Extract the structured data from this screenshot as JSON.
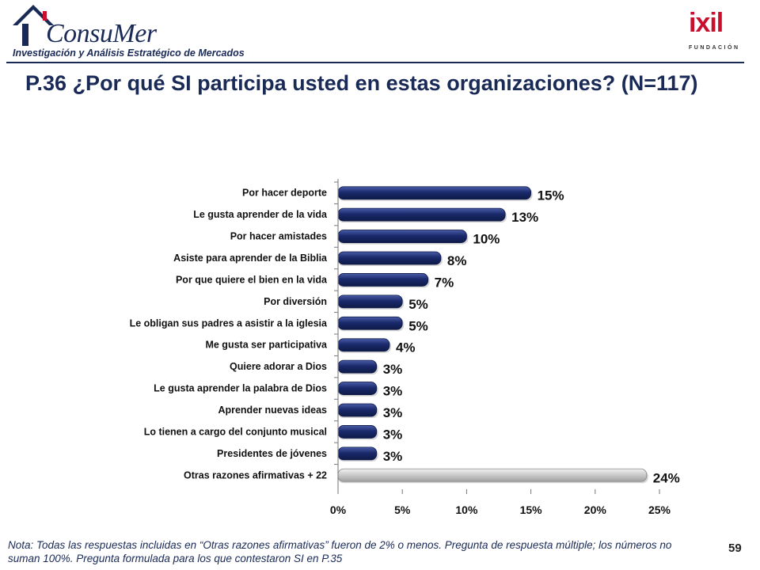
{
  "header": {
    "logo_left_text": "ConsuMer",
    "logo_left_tagline": "Investigación y Análisis Estratégico de Mercados",
    "logo_right_text": "ixil",
    "logo_right_sub": "FUNDACIÓN"
  },
  "title": "P.36 ¿Por qué SI participa usted en estas organizaciones? (N=117)",
  "footnote": "Nota: Todas las respuestas incluidas en “Otras razones afirmativas” fueron de 2% o menos. Pregunta de respuesta múltiple; los números no suman 100%. Pregunta formulada para los que contestaron SI en P.35",
  "page_number": "59",
  "colors": {
    "bar_primary": "#1a2a6c",
    "bar_highlight": "#4a5ca8",
    "bar_other": "#c0c0c0",
    "text_dark": "#1a2a57"
  },
  "chart_data": {
    "type": "bar",
    "orientation": "horizontal",
    "categories": [
      "Por hacer deporte",
      "Le gusta aprender de la vida",
      "Por  hacer amistades",
      "Asiste para aprender de la Biblia",
      "Por que quiere el bien en la vida",
      "Por diversión",
      "Le obligan sus padres a asistir a la iglesia",
      "Me gusta ser participativa",
      "Quiere adorar a Dios",
      "Le gusta aprender la palabra de Dios",
      "Aprender nuevas ideas",
      "Lo tienen a cargo del conjunto musical",
      "Presidentes de jóvenes",
      "Otras razones afirmativas + 22"
    ],
    "values": [
      15,
      13,
      10,
      8,
      7,
      5,
      5,
      4,
      3,
      3,
      3,
      3,
      3,
      24
    ],
    "value_labels": [
      "15%",
      "13%",
      "10%",
      "8%",
      "7%",
      "5%",
      "5%",
      "4%",
      "3%",
      "3%",
      "3%",
      "3%",
      "3%",
      "24%"
    ],
    "highlight": [
      false,
      false,
      false,
      false,
      false,
      false,
      false,
      false,
      false,
      false,
      false,
      false,
      false,
      true
    ],
    "xlim": [
      0,
      25
    ],
    "xticks": [
      0,
      5,
      10,
      15,
      20,
      25
    ],
    "xtick_labels": [
      "0%",
      "5%",
      "10%",
      "15%",
      "20%",
      "25%"
    ],
    "title": "",
    "xlabel": "",
    "ylabel": "",
    "grid": false,
    "legend": "none"
  }
}
